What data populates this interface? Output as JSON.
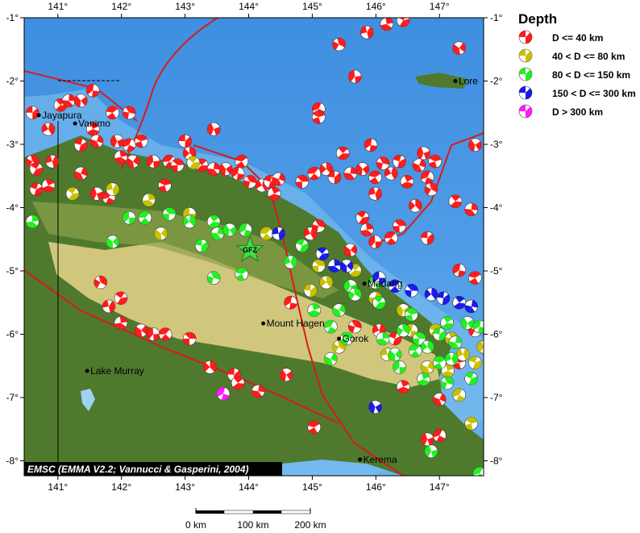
{
  "map": {
    "lon_ticks": [
      "141°",
      "142°",
      "143°",
      "144°",
      "145°",
      "146°",
      "147°"
    ],
    "lon_values": [
      141,
      142,
      143,
      144,
      145,
      146,
      147
    ],
    "lat_ticks": [
      "-1°",
      "-2°",
      "-3°",
      "-4°",
      "-5°",
      "-6°",
      "-7°",
      "-8°"
    ],
    "lat_values": [
      -1,
      -2,
      -3,
      -4,
      -5,
      -6,
      -7,
      -8
    ],
    "extent": {
      "lon": [
        140.47,
        147.7
      ],
      "lat": [
        -0.97,
        -8.2
      ]
    },
    "credit": "EMSC (EMMA V2.2; Vannucci & Gasperini, 2004)",
    "star_label": "GFZ",
    "star_location": [
      144.02,
      -4.67
    ],
    "colors": {
      "ocean": "#5aa6e8",
      "lowland": "#4f7a2e",
      "highland": "#e7d58a",
      "boundary": "#d81b1b",
      "star": "#44dd44"
    },
    "cities": [
      {
        "name": "Jayapura",
        "lon": 140.7,
        "lat": -2.54
      },
      {
        "name": "Vanimo",
        "lon": 141.27,
        "lat": -2.67
      },
      {
        "name": "Lore",
        "lon": 147.25,
        "lat": -2.0
      },
      {
        "name": "Madang",
        "lon": 145.82,
        "lat": -5.2
      },
      {
        "name": "Mount Hagen",
        "lon": 144.23,
        "lat": -5.83
      },
      {
        "name": "Gorok",
        "lon": 145.42,
        "lat": -6.07
      },
      {
        "name": "Lake Murray",
        "lon": 141.46,
        "lat": -6.58
      },
      {
        "name": "Kerema",
        "lon": 145.75,
        "lat": -7.98
      }
    ],
    "events": [
      [
        140.6,
        -2.5,
        0
      ],
      [
        141.04,
        -2.38,
        0
      ],
      [
        141.17,
        -2.31,
        0
      ],
      [
        141.36,
        -2.31,
        0
      ],
      [
        141.55,
        -2.15,
        0
      ],
      [
        141.86,
        -2.5,
        0
      ],
      [
        142.12,
        -2.5,
        0
      ],
      [
        140.85,
        -2.76,
        0
      ],
      [
        141.36,
        -3.01,
        0
      ],
      [
        141.55,
        -2.76,
        0
      ],
      [
        141.61,
        -2.95,
        0
      ],
      [
        141.93,
        -2.95,
        0
      ],
      [
        142.12,
        -3.01,
        0
      ],
      [
        142.31,
        -2.95,
        0
      ],
      [
        140.6,
        -3.27,
        0
      ],
      [
        140.91,
        -3.27,
        0
      ],
      [
        140.66,
        -3.39,
        0
      ],
      [
        141.99,
        -3.2,
        0
      ],
      [
        142.18,
        -3.27,
        0
      ],
      [
        142.5,
        -3.27,
        0
      ],
      [
        142.75,
        -3.27,
        0
      ],
      [
        142.88,
        -3.33,
        0
      ],
      [
        143.07,
        -3.14,
        0
      ],
      [
        143.0,
        -2.95,
        0
      ],
      [
        143.26,
        -3.33,
        0
      ],
      [
        143.45,
        -3.39,
        0
      ],
      [
        143.64,
        -3.39,
        0
      ],
      [
        143.83,
        -3.46,
        0
      ],
      [
        143.89,
        -3.27,
        0
      ],
      [
        144.02,
        -3.59,
        0
      ],
      [
        144.21,
        -3.65,
        0
      ],
      [
        144.34,
        -3.59,
        0
      ],
      [
        144.4,
        -3.78,
        0
      ],
      [
        144.47,
        -3.55,
        0
      ],
      [
        143.45,
        -2.76,
        0
      ],
      [
        145.1,
        -2.44,
        0
      ],
      [
        145.1,
        -2.57,
        0
      ],
      [
        145.42,
        -1.42,
        0
      ],
      [
        145.86,
        -1.23,
        0
      ],
      [
        146.43,
        -1.04,
        0
      ],
      [
        146.17,
        -1.1,
        0
      ],
      [
        147.31,
        -1.48,
        0
      ],
      [
        145.67,
        -1.93,
        0
      ],
      [
        145.03,
        -3.46,
        0
      ],
      [
        144.84,
        -3.59,
        0
      ],
      [
        145.22,
        -3.39,
        0
      ],
      [
        145.35,
        -3.52,
        0
      ],
      [
        145.48,
        -3.14,
        0
      ],
      [
        145.6,
        -3.46,
        0
      ],
      [
        145.79,
        -3.39,
        0
      ],
      [
        145.92,
        -3.01,
        0
      ],
      [
        145.99,
        -3.52,
        0
      ],
      [
        146.11,
        -3.3,
        0
      ],
      [
        146.24,
        -3.46,
        0
      ],
      [
        146.37,
        -3.27,
        0
      ],
      [
        146.49,
        -3.59,
        0
      ],
      [
        146.68,
        -3.33,
        0
      ],
      [
        146.75,
        -3.14,
        0
      ],
      [
        146.81,
        -3.52,
        0
      ],
      [
        146.93,
        -3.27,
        0
      ],
      [
        146.87,
        -3.71,
        0
      ],
      [
        145.99,
        -3.78,
        0
      ],
      [
        145.79,
        -4.16,
        0
      ],
      [
        145.86,
        -4.35,
        0
      ],
      [
        145.6,
        -4.67,
        0
      ],
      [
        145.99,
        -4.54,
        0
      ],
      [
        146.24,
        -4.48,
        0
      ],
      [
        146.37,
        -4.29,
        0
      ],
      [
        146.62,
        -3.97,
        0
      ],
      [
        146.81,
        -4.48,
        0
      ],
      [
        147.25,
        -3.9,
        0
      ],
      [
        147.5,
        -4.03,
        0
      ],
      [
        147.56,
        -3.01,
        0
      ],
      [
        147.31,
        -4.99,
        0
      ],
      [
        147.56,
        -5.11,
        0
      ],
      [
        145.1,
        -4.29,
        0
      ],
      [
        144.97,
        -4.41,
        0
      ],
      [
        140.66,
        -3.71,
        0
      ],
      [
        140.85,
        -3.65,
        0
      ],
      [
        141.36,
        -3.46,
        0
      ],
      [
        141.61,
        -3.78,
        0
      ],
      [
        141.8,
        -3.84,
        0
      ],
      [
        142.68,
        -3.65,
        0
      ],
      [
        141.67,
        -5.18,
        0
      ],
      [
        141.8,
        -5.56,
        0
      ],
      [
        141.99,
        -5.43,
        0
      ],
      [
        141.99,
        -5.82,
        0
      ],
      [
        142.31,
        -5.94,
        0
      ],
      [
        142.5,
        -6.0,
        0
      ],
      [
        142.69,
        -6.0,
        0
      ],
      [
        143.07,
        -6.07,
        0
      ],
      [
        143.39,
        -6.52,
        0
      ],
      [
        143.77,
        -6.64,
        0
      ],
      [
        143.83,
        -6.77,
        0
      ],
      [
        144.15,
        -6.9,
        0
      ],
      [
        144.59,
        -6.64,
        0
      ],
      [
        144.66,
        -5.5,
        0
      ],
      [
        145.03,
        -7.47,
        0
      ],
      [
        145.67,
        -5.88,
        0
      ],
      [
        146.05,
        -5.94,
        0
      ],
      [
        146.3,
        -6.07,
        0
      ],
      [
        146.43,
        -6.83,
        0
      ],
      [
        147.0,
        -7.03,
        0
      ],
      [
        146.81,
        -7.66,
        0
      ],
      [
        147.0,
        -7.6,
        0
      ],
      [
        147.31,
        -6.45,
        0
      ],
      [
        147.56,
        -5.94,
        0
      ],
      [
        141.86,
        -3.71,
        1
      ],
      [
        141.23,
        -3.78,
        1
      ],
      [
        142.43,
        -3.88,
        1
      ],
      [
        142.62,
        -4.41,
        1
      ],
      [
        143.07,
        -4.1,
        1
      ],
      [
        144.28,
        -4.41,
        1
      ],
      [
        145.1,
        -4.92,
        1
      ],
      [
        145.22,
        -5.18,
        1
      ],
      [
        144.97,
        -5.31,
        1
      ],
      [
        145.67,
        -4.99,
        1
      ],
      [
        145.99,
        -5.43,
        1
      ],
      [
        146.43,
        -5.62,
        1
      ],
      [
        146.56,
        -5.94,
        1
      ],
      [
        146.94,
        -5.94,
        1
      ],
      [
        147.19,
        -6.07,
        1
      ],
      [
        147.37,
        -6.32,
        1
      ],
      [
        147.56,
        -6.45,
        1
      ],
      [
        147.13,
        -6.58,
        1
      ],
      [
        146.81,
        -6.52,
        1
      ],
      [
        147.69,
        -6.2,
        1
      ],
      [
        147.31,
        -6.96,
        1
      ],
      [
        147.5,
        -7.41,
        1
      ],
      [
        145.42,
        -6.2,
        1
      ],
      [
        146.18,
        -6.32,
        1
      ],
      [
        143.13,
        -3.29,
        1
      ],
      [
        140.6,
        -4.22,
        2
      ],
      [
        141.86,
        -4.54,
        2
      ],
      [
        142.12,
        -4.16,
        2
      ],
      [
        142.37,
        -4.16,
        2
      ],
      [
        142.75,
        -4.1,
        2
      ],
      [
        143.07,
        -4.22,
        2
      ],
      [
        143.26,
        -4.6,
        2
      ],
      [
        143.45,
        -4.22,
        2
      ],
      [
        143.51,
        -4.41,
        2
      ],
      [
        143.7,
        -4.35,
        2
      ],
      [
        143.95,
        -4.35,
        2
      ],
      [
        143.89,
        -5.05,
        2
      ],
      [
        143.45,
        -5.11,
        2
      ],
      [
        144.66,
        -4.86,
        2
      ],
      [
        144.84,
        -4.6,
        2
      ],
      [
        145.03,
        -5.62,
        2
      ],
      [
        145.42,
        -5.62,
        2
      ],
      [
        145.6,
        -5.24,
        2
      ],
      [
        145.29,
        -5.88,
        2
      ],
      [
        145.54,
        -6.07,
        2
      ],
      [
        145.67,
        -5.37,
        2
      ],
      [
        145.99,
        -5.18,
        2
      ],
      [
        146.05,
        -5.5,
        2
      ],
      [
        146.11,
        -6.07,
        2
      ],
      [
        146.3,
        -6.32,
        2
      ],
      [
        146.37,
        -6.52,
        2
      ],
      [
        146.62,
        -6.26,
        2
      ],
      [
        146.68,
        -6.07,
        2
      ],
      [
        146.81,
        -6.2,
        2
      ],
      [
        147.0,
        -6.0,
        2
      ],
      [
        147.12,
        -5.82,
        2
      ],
      [
        147.25,
        -6.13,
        2
      ],
      [
        147.44,
        -5.82,
        2
      ],
      [
        147.63,
        -5.88,
        2
      ],
      [
        147.0,
        -6.45,
        2
      ],
      [
        147.12,
        -6.77,
        2
      ],
      [
        147.19,
        -6.39,
        2
      ],
      [
        147.5,
        -6.7,
        2
      ],
      [
        146.75,
        -6.71,
        2
      ],
      [
        145.29,
        -6.39,
        2
      ],
      [
        146.87,
        -7.85,
        2
      ],
      [
        147.63,
        -8.2,
        2
      ],
      [
        146.56,
        -5.69,
        2
      ],
      [
        146.43,
        -5.94,
        2
      ],
      [
        144.47,
        -4.41,
        3
      ],
      [
        145.16,
        -4.73,
        3
      ],
      [
        145.35,
        -4.92,
        3
      ],
      [
        145.54,
        -4.92,
        3
      ],
      [
        146.05,
        -5.11,
        3
      ],
      [
        146.3,
        -5.24,
        3
      ],
      [
        146.56,
        -5.31,
        3
      ],
      [
        146.87,
        -5.37,
        3
      ],
      [
        147.06,
        -5.43,
        3
      ],
      [
        147.31,
        -5.5,
        3
      ],
      [
        147.5,
        -5.56,
        3
      ],
      [
        145.99,
        -7.15,
        3
      ],
      [
        143.6,
        -6.94,
        4
      ]
    ]
  },
  "legend": {
    "title": "Depth",
    "items": [
      {
        "label": "D <= 40 km",
        "color": "#ff1a1a"
      },
      {
        "label": "40 < D <= 80 km",
        "color": "#c8c000"
      },
      {
        "label": "80 < D <= 150 km",
        "color": "#22ee22"
      },
      {
        "label": "150 < D <= 300 km",
        "color": "#1a1ae6"
      },
      {
        "label": "D > 300 km",
        "color": "#ff1aff"
      }
    ]
  },
  "scale_bar": {
    "labels": [
      "0 km",
      "100 km",
      "200 km"
    ]
  }
}
